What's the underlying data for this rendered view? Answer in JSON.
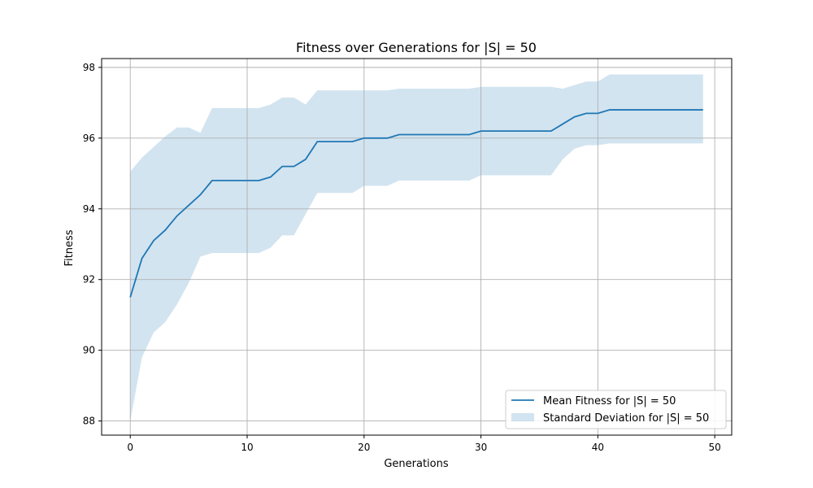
{
  "chart_data": {
    "type": "line",
    "title": "Fitness over Generations for |S| = 50",
    "xlabel": "Generations",
    "ylabel": "Fitness",
    "xlim": [
      -2.45,
      51.45
    ],
    "ylim": [
      87.6,
      98.25
    ],
    "xticks": [
      0,
      10,
      20,
      30,
      40,
      50
    ],
    "yticks": [
      88,
      90,
      92,
      94,
      96,
      98
    ],
    "grid": true,
    "legend_position": "lower right",
    "colors": {
      "line": "#1f77b4",
      "band": "#1f77b4",
      "grid": "#b0b0b0"
    },
    "x": [
      0,
      1,
      2,
      3,
      4,
      5,
      6,
      7,
      8,
      9,
      10,
      11,
      12,
      13,
      14,
      15,
      16,
      17,
      18,
      19,
      20,
      21,
      22,
      23,
      24,
      25,
      26,
      27,
      28,
      29,
      30,
      31,
      32,
      33,
      34,
      35,
      36,
      37,
      38,
      39,
      40,
      41,
      42,
      43,
      44,
      45,
      46,
      47,
      48,
      49
    ],
    "series": [
      {
        "name": "Mean Fitness for |S| = 50",
        "values": [
          91.5,
          92.6,
          93.1,
          93.4,
          93.8,
          94.1,
          94.4,
          94.8,
          94.8,
          94.8,
          94.8,
          94.8,
          94.9,
          95.2,
          95.2,
          95.4,
          95.9,
          95.9,
          95.9,
          95.9,
          96.0,
          96.0,
          96.0,
          96.1,
          96.1,
          96.1,
          96.1,
          96.1,
          96.1,
          96.1,
          96.2,
          96.2,
          96.2,
          96.2,
          96.2,
          96.2,
          96.2,
          96.4,
          96.6,
          96.7,
          96.7,
          96.8,
          96.8,
          96.8,
          96.8,
          96.8,
          96.8,
          96.8,
          96.8,
          96.8
        ]
      },
      {
        "name": "Standard Deviation for |S| = 50",
        "type": "band",
        "upper": [
          95.05,
          95.45,
          95.75,
          96.05,
          96.3,
          96.3,
          96.15,
          96.85,
          96.85,
          96.85,
          96.85,
          96.85,
          96.95,
          97.15,
          97.15,
          96.95,
          97.35,
          97.35,
          97.35,
          97.35,
          97.35,
          97.35,
          97.35,
          97.4,
          97.4,
          97.4,
          97.4,
          97.4,
          97.4,
          97.4,
          97.45,
          97.45,
          97.45,
          97.45,
          97.45,
          97.45,
          97.45,
          97.4,
          97.5,
          97.6,
          97.6,
          97.8,
          97.8,
          97.8,
          97.8,
          97.8,
          97.8,
          97.8,
          97.8,
          97.8
        ],
        "lower": [
          88.0,
          89.8,
          90.5,
          90.8,
          91.3,
          91.9,
          92.65,
          92.75,
          92.75,
          92.75,
          92.75,
          92.75,
          92.9,
          93.25,
          93.25,
          93.85,
          94.45,
          94.45,
          94.45,
          94.45,
          94.65,
          94.65,
          94.65,
          94.8,
          94.8,
          94.8,
          94.8,
          94.8,
          94.8,
          94.8,
          94.95,
          94.95,
          94.95,
          94.95,
          94.95,
          94.95,
          94.95,
          95.4,
          95.7,
          95.8,
          95.8,
          95.85,
          95.85,
          95.85,
          95.85,
          95.85,
          95.85,
          95.85,
          95.85,
          95.85
        ]
      }
    ]
  }
}
